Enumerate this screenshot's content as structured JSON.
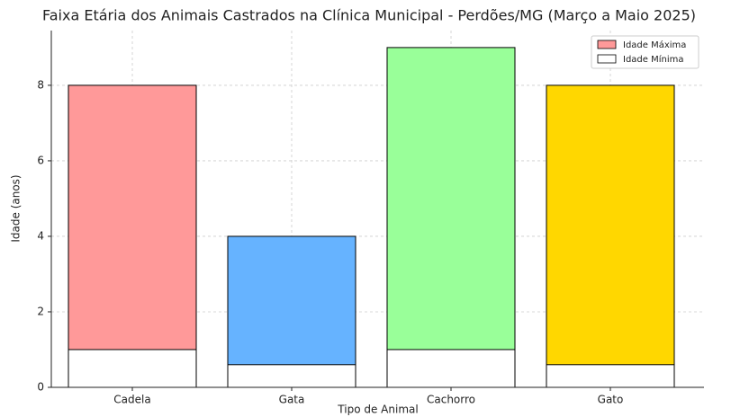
{
  "chart_data": {
    "type": "bar",
    "title": "Faixa Etária dos Animais Castrados na Clínica Municipal - Perdões/MG (Março a Maio 2025)",
    "x_label": "Tipo de Animal",
    "y_label": "Idade (anos)",
    "categories": [
      "Cadela",
      "Gata",
      "Cachorro",
      "Gato"
    ],
    "series": [
      {
        "name": "Idade Máxima",
        "colors": [
          "#ff9999",
          "#66b3ff",
          "#99ff99",
          "#ffd700"
        ],
        "values": [
          8,
          4,
          9,
          8
        ]
      },
      {
        "name": "Idade Mínima",
        "color": "#ffffff",
        "values": [
          1,
          0.6,
          1,
          0.6
        ]
      }
    ],
    "ylim": [
      0,
      9.45
    ],
    "yticks": [
      0,
      2,
      4,
      6,
      8
    ],
    "grid": true,
    "legend": "upper right"
  }
}
